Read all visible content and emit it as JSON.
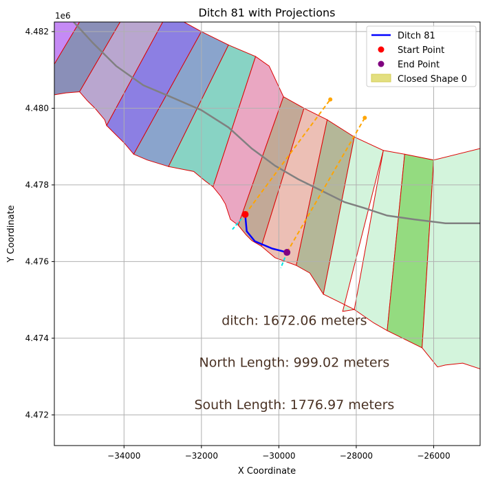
{
  "chart_data": {
    "type": "line",
    "title": "Ditch 81 with Projections",
    "xlabel": "X Coordinate",
    "ylabel": "Y Coordinate",
    "y_offset_label": "1e6",
    "xlim": [
      -35800,
      -24800
    ],
    "ylim": [
      4471200,
      4482250
    ],
    "grid": true,
    "legend_position": "top-right",
    "x_ticks": [
      {
        "value": -34000,
        "label": "−34000"
      },
      {
        "value": -32000,
        "label": "−32000"
      },
      {
        "value": -30000,
        "label": "−30000"
      },
      {
        "value": -28000,
        "label": "−28000"
      },
      {
        "value": -26000,
        "label": "−26000"
      }
    ],
    "y_ticks": [
      {
        "value": 4472000,
        "label": "4.472"
      },
      {
        "value": 4474000,
        "label": "4.474"
      },
      {
        "value": 4476000,
        "label": "4.476"
      },
      {
        "value": 4478000,
        "label": "4.478"
      },
      {
        "value": 4480000,
        "label": "4.480"
      },
      {
        "value": 4482000,
        "label": "4.482"
      }
    ],
    "legend": [
      {
        "label": "Ditch 81",
        "kind": "line",
        "color": "#0000ff"
      },
      {
        "label": "Start Point",
        "kind": "point",
        "color": "#ff0000"
      },
      {
        "label": "End Point",
        "kind": "point",
        "color": "#800080"
      },
      {
        "label": "Closed Shape 0",
        "kind": "patch",
        "color": "#e3df80"
      }
    ],
    "segment_edge_color": "#dd0000",
    "segments": [
      {
        "color": "#c58af5",
        "points": [
          [
            -35800,
            4482250
          ],
          [
            -35150,
            4482250
          ],
          [
            -35800,
            4481150
          ]
        ]
      },
      {
        "color": "#8a8fb8",
        "points": [
          [
            -35150,
            4482250
          ],
          [
            -34100,
            4482250
          ],
          [
            -35150,
            4480430
          ],
          [
            -35500,
            4480400
          ],
          [
            -35800,
            4480350
          ],
          [
            -35800,
            4481150
          ]
        ]
      },
      {
        "color": "#b9a6cf",
        "points": [
          [
            -34100,
            4482250
          ],
          [
            -33000,
            4482250
          ],
          [
            -34450,
            4479550
          ],
          [
            -34500,
            4479700
          ],
          [
            -34750,
            4480000
          ],
          [
            -34950,
            4480200
          ],
          [
            -35150,
            4480430
          ]
        ]
      },
      {
        "color": "#8c7fe3",
        "points": [
          [
            -33000,
            4482250
          ],
          [
            -32450,
            4482250
          ],
          [
            -32000,
            4482000
          ],
          [
            -33750,
            4478800
          ],
          [
            -34000,
            4479100
          ],
          [
            -34200,
            4479300
          ],
          [
            -34450,
            4479550
          ]
        ]
      },
      {
        "color": "#8aa4cc",
        "points": [
          [
            -32000,
            4482000
          ],
          [
            -31300,
            4481650
          ],
          [
            -32850,
            4478480
          ],
          [
            -33400,
            4478650
          ],
          [
            -33750,
            4478800
          ]
        ]
      },
      {
        "color": "#88d3c4",
        "points": [
          [
            -31300,
            4481650
          ],
          [
            -30600,
            4481350
          ],
          [
            -31700,
            4477950
          ],
          [
            -31900,
            4478100
          ],
          [
            -32200,
            4478350
          ],
          [
            -32850,
            4478480
          ]
        ]
      },
      {
        "color": "#eaa7c2",
        "points": [
          [
            -30600,
            4481350
          ],
          [
            -30250,
            4481100
          ],
          [
            -29880,
            4480300
          ],
          [
            -31050,
            4476950
          ],
          [
            -31250,
            4477100
          ],
          [
            -31380,
            4477500
          ],
          [
            -31500,
            4477700
          ],
          [
            -31700,
            4477950
          ]
        ]
      },
      {
        "color": "#c2a997",
        "points": [
          [
            -29880,
            4480300
          ],
          [
            -29350,
            4480000
          ],
          [
            -30450,
            4476400
          ],
          [
            -30700,
            4476550
          ],
          [
            -30850,
            4476700
          ],
          [
            -31050,
            4476950
          ]
        ]
      },
      {
        "color": "#ecbfb5",
        "points": [
          [
            -29350,
            4480000
          ],
          [
            -28750,
            4479700
          ],
          [
            -29550,
            4475900
          ],
          [
            -30100,
            4476100
          ],
          [
            -30450,
            4476400
          ]
        ]
      },
      {
        "color": "#b4b798",
        "points": [
          [
            -28750,
            4479700
          ],
          [
            -28050,
            4479250
          ],
          [
            -28850,
            4475150
          ],
          [
            -29200,
            4475700
          ],
          [
            -29550,
            4475900
          ]
        ]
      },
      {
        "color": "#d3f4dc",
        "points": [
          [
            -28050,
            4479250
          ],
          [
            -27300,
            4478900
          ],
          [
            -28350,
            4474700
          ],
          [
            -28050,
            4474750
          ],
          [
            -28550,
            4475000
          ],
          [
            -28850,
            4475150
          ]
        ]
      },
      {
        "color": "#d3f4dc",
        "points": [
          [
            -27300,
            4478900
          ],
          [
            -26750,
            4478800
          ],
          [
            -27200,
            4474200
          ],
          [
            -27550,
            4474400
          ],
          [
            -28050,
            4474750
          ]
        ]
      },
      {
        "color": "#94db80",
        "points": [
          [
            -26750,
            4478800
          ],
          [
            -26000,
            4478650
          ],
          [
            -26300,
            4473750
          ],
          [
            -27200,
            4474200
          ]
        ]
      },
      {
        "color": "#d3f4dc",
        "points": [
          [
            -26000,
            4478650
          ],
          [
            -24800,
            4478950
          ],
          [
            -24800,
            4473200
          ],
          [
            -25250,
            4473350
          ],
          [
            -25700,
            4473300
          ],
          [
            -25900,
            4473250
          ],
          [
            -26300,
            4473750
          ]
        ]
      }
    ],
    "centerline": {
      "color": "#808080",
      "points": [
        [
          -35300,
          4482250
        ],
        [
          -34800,
          4481700
        ],
        [
          -34200,
          4481100
        ],
        [
          -33500,
          4480600
        ],
        [
          -32800,
          4480300
        ],
        [
          -32000,
          4479950
        ],
        [
          -31300,
          4479500
        ],
        [
          -30700,
          4478950
        ],
        [
          -30100,
          4478500
        ],
        [
          -29500,
          4478150
        ],
        [
          -28900,
          4477850
        ],
        [
          -28300,
          4477550
        ],
        [
          -27800,
          4477400
        ],
        [
          -27200,
          4477200
        ],
        [
          -26500,
          4477100
        ],
        [
          -25700,
          4477000
        ],
        [
          -24800,
          4477000
        ]
      ]
    },
    "ditch": {
      "name": "Ditch 81",
      "color": "#0000ff",
      "points": [
        [
          -30870,
          4477230
        ],
        [
          -30830,
          4476790
        ],
        [
          -30620,
          4476530
        ],
        [
          -30170,
          4476340
        ],
        [
          -29790,
          4476240
        ]
      ]
    },
    "start_point": {
      "x": -30870,
      "y": 4477230,
      "color": "#ff0000"
    },
    "end_point": {
      "x": -29790,
      "y": 4476240,
      "color": "#800080"
    },
    "projections": [
      {
        "color": "#ffa500",
        "points": [
          [
            -30870,
            4477230
          ],
          [
            -28670,
            4480230
          ]
        ]
      },
      {
        "color": "#ffa500",
        "points": [
          [
            -29790,
            4476240
          ],
          [
            -27780,
            4479750
          ]
        ]
      }
    ],
    "cyan_ticks": [
      {
        "color": "#00e5e5",
        "points": [
          [
            -30870,
            4477230
          ],
          [
            -31200,
            4476840
          ]
        ]
      },
      {
        "color": "#00e5e5",
        "points": [
          [
            -29790,
            4476240
          ],
          [
            -29950,
            4475830
          ]
        ]
      }
    ],
    "annotations": [
      {
        "text": "ditch: 1672.06 meters",
        "x": -29600,
        "y": 4474350
      },
      {
        "text": "North Length: 999.02 meters",
        "x": -29600,
        "y": 4473250
      },
      {
        "text": "South Length: 1776.97 meters",
        "x": -29600,
        "y": 4472150
      }
    ]
  }
}
